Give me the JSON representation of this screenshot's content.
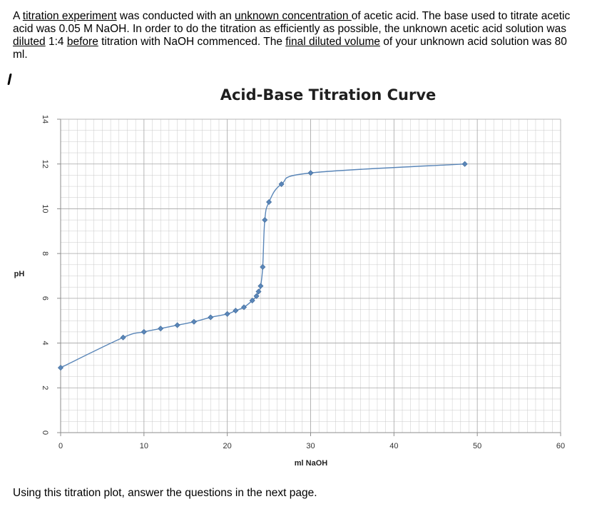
{
  "question": {
    "t1": "A ",
    "u1": "titration experiment",
    "t2": " was conducted with an ",
    "u2": "unknown concentration ",
    "t3": "of acetic acid. The base used to titrate acetic acid was 0.05 M NaOH. In order to do the titration as efficiently as possible, the unknown acetic acid solution was ",
    "u3": "diluted",
    "t4": " 1:4 ",
    "u4": "before",
    "t5": " titration with NaOH commenced. The ",
    "u5": "final diluted volume",
    "t6": " of your unknown acid solution was 80 ml."
  },
  "footer_text": "Using this titration plot, answer the questions in the next page.",
  "colors": {
    "series": "#5a86b8",
    "grid": "#c9c9c9",
    "axis": "#8c8c8c"
  },
  "chart_data": {
    "type": "scatter",
    "title": "Acid-Base Titration Curve",
    "xlabel": "ml NaOH",
    "ylabel": "pH",
    "xlim": [
      0,
      60
    ],
    "ylim": [
      0,
      14
    ],
    "x_ticks": [
      "0",
      "10",
      "20",
      "30",
      "40",
      "50",
      "60"
    ],
    "y_ticks": [
      "0",
      "2",
      "4",
      "6",
      "8",
      "10",
      "12",
      "14"
    ],
    "grid": true,
    "line": "smooth",
    "series": [
      {
        "x": [
          0,
          7.5,
          10,
          12,
          14,
          16,
          18,
          20,
          21,
          22,
          23,
          23.5,
          23.75,
          24,
          24.25,
          24.5,
          25,
          26.5,
          30,
          48.5
        ],
        "y": [
          2.9,
          4.25,
          4.5,
          4.65,
          4.8,
          4.95,
          5.15,
          5.3,
          5.45,
          5.6,
          5.9,
          6.1,
          6.3,
          6.55,
          7.4,
          9.5,
          10.3,
          11.1,
          11.6,
          12.0
        ]
      }
    ]
  }
}
